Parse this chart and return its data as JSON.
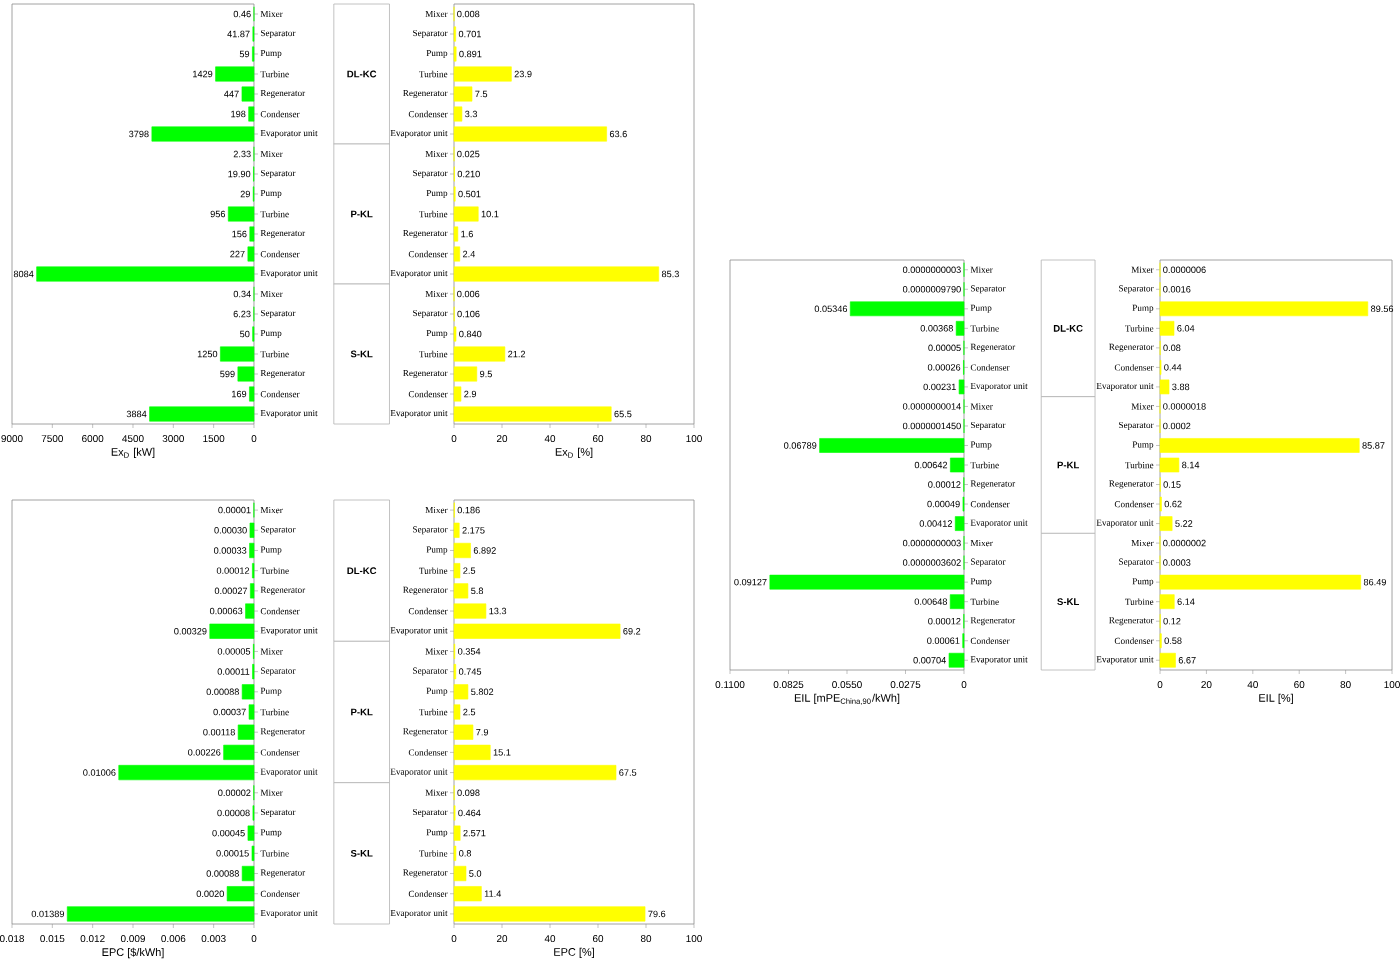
{
  "chart_data": [
    {
      "type": "bar",
      "orientation": "horizontal",
      "xlabel": "Ex$_{D}$ [kW]",
      "color": "#00ff00",
      "xlim": [
        9000,
        0
      ],
      "xticks": [
        9000,
        7500,
        6000,
        4500,
        3000,
        1500,
        0
      ],
      "annotations": [
        "DL-KC",
        "P-KL",
        "S-KL"
      ],
      "categories": [
        "Mixer",
        "Separator",
        "Pump",
        "Turbine",
        "Regenerator",
        "Condenser",
        "Evaporator unit",
        "Mixer",
        "Separator",
        "Pump",
        "Turbine",
        "Regenerator",
        "Condenser",
        "Evaporator unit",
        "Mixer",
        "Separator",
        "Pump",
        "Turbine",
        "Regenerator",
        "Condenser",
        "Evaporator unit"
      ],
      "values": [
        0.46,
        41.87,
        59,
        1429,
        447,
        198,
        3798,
        2.33,
        19.9,
        29,
        956,
        156,
        227,
        8084,
        0.34,
        6.23,
        50,
        1250,
        599,
        169,
        3884
      ],
      "value_labels": [
        "0.46",
        "41.87",
        "59",
        "1429",
        "447",
        "198",
        "3798",
        "2.33",
        "19.90",
        "29",
        "956",
        "156",
        "227",
        "8084",
        "0.34",
        "6.23",
        "50",
        "1250",
        "599",
        "169",
        "3884"
      ]
    },
    {
      "type": "bar",
      "orientation": "horizontal",
      "xlabel": "Ex$_{D}$ [%]",
      "color": "#ffff00",
      "xlim": [
        0,
        100
      ],
      "xticks": [
        0,
        20,
        40,
        60,
        80,
        100
      ],
      "categories": [
        "Mixer",
        "Separator",
        "Pump",
        "Turbine",
        "Regenerator",
        "Condenser",
        "Evaporator unit",
        "Mixer",
        "Separator",
        "Pump",
        "Turbine",
        "Regenerator",
        "Condenser",
        "Evaporator unit",
        "Mixer",
        "Separator",
        "Pump",
        "Turbine",
        "Regenerator",
        "Condenser",
        "Evaporator unit"
      ],
      "values": [
        0.008,
        0.701,
        0.891,
        23.9,
        7.5,
        3.3,
        63.6,
        0.025,
        0.21,
        0.501,
        10.1,
        1.6,
        2.4,
        85.3,
        0.006,
        0.106,
        0.84,
        21.2,
        9.5,
        2.9,
        65.5
      ],
      "value_labels": [
        "0.008",
        "0.701",
        "0.891",
        "23.9",
        "7.5",
        "3.3",
        "63.6",
        "0.025",
        "0.210",
        "0.501",
        "10.1",
        "1.6",
        "2.4",
        "85.3",
        "0.006",
        "0.106",
        "0.840",
        "21.2",
        "9.5",
        "2.9",
        "65.5"
      ]
    },
    {
      "type": "bar",
      "orientation": "horizontal",
      "xlabel": "EIL [mPE$_{China,90}$/kWh]",
      "color": "#00ff00",
      "xlim": [
        0.11,
        0
      ],
      "xticks": [
        {
          "value": 0.11,
          "label": "0.1100"
        },
        0.0825,
        {
          "value": 0.055,
          "label": "0.0550"
        },
        0.0275,
        0
      ],
      "annotations": [
        "DL-KC",
        "P-KL",
        "S-KL"
      ],
      "categories": [
        "Mixer",
        "Separator",
        "Pump",
        "Turbine",
        "Regenerator",
        "Condenser",
        "Evaporator unit",
        "Mixer",
        "Separator",
        "Pump",
        "Turbine",
        "Regenerator",
        "Condenser",
        "Evaporator unit",
        "Mixer",
        "Separator",
        "Pump",
        "Turbine",
        "Regenerator",
        "Condenser",
        "Evaporator unit"
      ],
      "values": [
        3e-10,
        9.79e-07,
        0.05346,
        0.00368,
        5e-05,
        0.00026,
        0.00231,
        1.4e-09,
        1.45e-07,
        0.06789,
        0.00642,
        0.00012,
        0.00049,
        0.00412,
        3e-10,
        3.602e-07,
        0.09127,
        0.00648,
        0.00012,
        0.00061,
        0.00704
      ],
      "value_labels": [
        "0.0000000003",
        "0.0000009790",
        "0.05346",
        "0.00368",
        "0.00005",
        "0.00026",
        "0.00231",
        "0.0000000014",
        "0.0000001450",
        "0.06789",
        "0.00642",
        "0.00012",
        "0.00049",
        "0.00412",
        "0.0000000003",
        "0.0000003602",
        "0.09127",
        "0.00648",
        "0.00012",
        "0.00061",
        "0.00704"
      ]
    },
    {
      "type": "bar",
      "orientation": "horizontal",
      "xlabel": "EIL [%]",
      "color": "#ffff00",
      "xlim": [
        0,
        100
      ],
      "xticks": [
        0,
        20,
        40,
        60,
        80,
        100
      ],
      "categories": [
        "Mixer",
        "Separator",
        "Pump",
        "Turbine",
        "Regenerator",
        "Condenser",
        "Evaporator unit",
        "Mixer",
        "Separator",
        "Pump",
        "Turbine",
        "Regenerator",
        "Condenser",
        "Evaporator unit",
        "Mixer",
        "Separator",
        "Pump",
        "Turbine",
        "Regenerator",
        "Condenser",
        "Evaporator unit"
      ],
      "values": [
        6e-07,
        0.0016,
        89.56,
        6.04,
        0.08,
        0.44,
        3.88,
        1.8e-06,
        0.0002,
        85.87,
        8.14,
        0.15,
        0.62,
        5.22,
        2e-07,
        0.0003,
        86.49,
        6.14,
        0.12,
        0.58,
        6.67
      ],
      "value_labels": [
        "0.0000006",
        "0.0016",
        "89.56",
        "6.04",
        "0.08",
        "0.44",
        "3.88",
        "0.0000018",
        "0.0002",
        "85.87",
        "8.14",
        "0.15",
        "0.62",
        "5.22",
        "0.0000002",
        "0.0003",
        "86.49",
        "6.14",
        "0.12",
        "0.58",
        "6.67"
      ]
    },
    {
      "type": "bar",
      "orientation": "horizontal",
      "xlabel": "EPC [$/kWh]",
      "color": "#00ff00",
      "xlim": [
        0.018,
        0
      ],
      "xticks": [
        0.018,
        0.015,
        0.012,
        0.009,
        0.006,
        0.003,
        0
      ],
      "annotations": [
        "DL-KC",
        "P-KL",
        "S-KL"
      ],
      "categories": [
        "Mixer",
        "Separator",
        "Pump",
        "Turbine",
        "Regenerator",
        "Condenser",
        "Evaporator unit",
        "Mixer",
        "Separator",
        "Pump",
        "Turbine",
        "Regenerator",
        "Condenser",
        "Evaporator unit",
        "Mixer",
        "Separator",
        "Pump",
        "Turbine",
        "Regenerator",
        "Condenser",
        "Evaporator unit"
      ],
      "values": [
        1e-05,
        0.0003,
        0.00033,
        0.00012,
        0.00027,
        0.00063,
        0.00329,
        5e-05,
        0.00011,
        0.00088,
        0.00037,
        0.00118,
        0.00226,
        0.01006,
        2e-05,
        8e-05,
        0.00045,
        0.00015,
        0.00088,
        0.002,
        0.01389
      ],
      "value_labels": [
        "0.00001",
        "0.00030",
        "0.00033",
        "0.00012",
        "0.00027",
        "0.00063",
        "0.00329",
        "0.00005",
        "0.00011",
        "0.00088",
        "0.00037",
        "0.00118",
        "0.00226",
        "0.01006",
        "0.00002",
        "0.00008",
        "0.00045",
        "0.00015",
        "0.00088",
        "0.0020",
        "0.01389"
      ]
    },
    {
      "type": "bar",
      "orientation": "horizontal",
      "xlabel": "EPC [%]",
      "color": "#ffff00",
      "xlim": [
        0,
        100
      ],
      "xticks": [
        0,
        20,
        40,
        60,
        80,
        100
      ],
      "categories": [
        "Mixer",
        "Separator",
        "Pump",
        "Turbine",
        "Regenerator",
        "Condenser",
        "Evaporator unit",
        "Mixer",
        "Separator",
        "Pump",
        "Turbine",
        "Regenerator",
        "Condenser",
        "Evaporator unit",
        "Mixer",
        "Separator",
        "Pump",
        "Turbine",
        "Regenerator",
        "Condenser",
        "Evaporator unit"
      ],
      "values": [
        0.186,
        2.175,
        6.892,
        2.5,
        5.8,
        13.3,
        69.2,
        0.354,
        0.745,
        5.802,
        2.5,
        7.9,
        15.1,
        67.5,
        0.098,
        0.464,
        2.571,
        0.8,
        5.0,
        11.4,
        79.6
      ],
      "value_labels": [
        "0.186",
        "2.175",
        "6.892",
        "2.5",
        "5.8",
        "13.3",
        "69.2",
        "0.354",
        "0.745",
        "5.802",
        "2.5",
        "7.9",
        "15.1",
        "67.5",
        "0.098",
        "0.464",
        "2.571",
        "0.8",
        "5.0",
        "11.4",
        "79.6"
      ]
    }
  ]
}
